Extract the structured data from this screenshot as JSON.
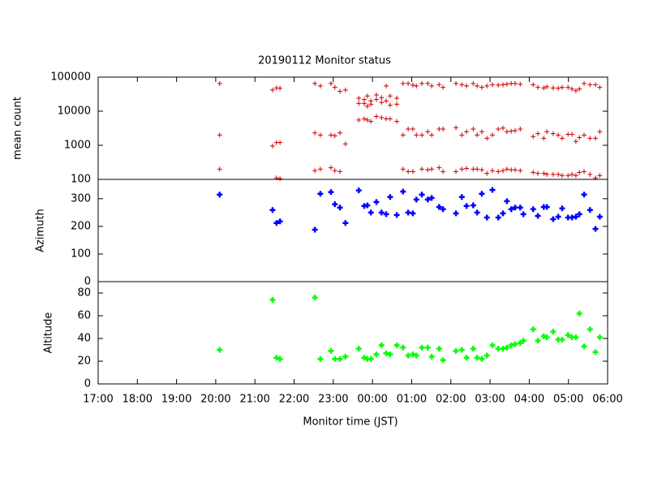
{
  "chart_data": [
    {
      "type": "scatter",
      "title": "20190112 Monitor status",
      "ylabel": "mean count",
      "ylog": true,
      "color": "#cc0000",
      "marker": "plus",
      "xlim": [
        17,
        30
      ],
      "ylim": [
        100,
        100000
      ],
      "yticks": [
        100,
        1000,
        10000,
        100000
      ],
      "series": [
        {
          "color": "#cc0000",
          "x": [
            20.1,
            20.1,
            20.1,
            21.45,
            21.45,
            21.55,
            21.55,
            21.55,
            21.64,
            21.64,
            21.64,
            22.53,
            22.53,
            22.53,
            22.67,
            22.67,
            22.67,
            22.94,
            22.94,
            22.94,
            23.04,
            23.04,
            23.04,
            23.17,
            23.17,
            23.17,
            23.31,
            23.31,
            23.65,
            23.65,
            23.65,
            23.79,
            23.79,
            23.79,
            23.87,
            23.87,
            23.87,
            23.96,
            23.96,
            23.96,
            24.1,
            24.1,
            24.1,
            24.23,
            24.23,
            24.23,
            24.35,
            24.35,
            24.35,
            24.45,
            24.45,
            24.45,
            24.62,
            24.62,
            24.62,
            24.78,
            24.78,
            24.78,
            24.91,
            24.91,
            24.91,
            25.03,
            25.03,
            25.03,
            25.12,
            25.12,
            25.26,
            25.26,
            25.26,
            25.41,
            25.41,
            25.41,
            25.51,
            25.51,
            25.51,
            25.7,
            25.7,
            25.7,
            25.8,
            25.8,
            25.8,
            26.13,
            26.13,
            26.13,
            26.28,
            26.28,
            26.28,
            26.4,
            26.4,
            26.4,
            26.57,
            26.57,
            26.57,
            26.67,
            26.67,
            26.67,
            26.79,
            26.79,
            26.79,
            26.92,
            26.92,
            26.92,
            27.06,
            27.06,
            27.06,
            27.21,
            27.21,
            27.21,
            27.33,
            27.33,
            27.33,
            27.43,
            27.43,
            27.43,
            27.54,
            27.54,
            27.54,
            27.64,
            27.64,
            27.64,
            27.77,
            27.77,
            27.77,
            28.1,
            28.1,
            28.1,
            28.22,
            28.22,
            28.22,
            28.37,
            28.37,
            28.37,
            28.45,
            28.45,
            28.45,
            28.61,
            28.61,
            28.61,
            28.74,
            28.74,
            28.74,
            28.84,
            28.84,
            28.84,
            28.99,
            28.99,
            28.99,
            29.09,
            29.09,
            29.09,
            29.19,
            29.19,
            29.19,
            29.28,
            29.28,
            29.28,
            29.4,
            29.4,
            29.4,
            29.55,
            29.55,
            29.55,
            29.69,
            29.69,
            29.69,
            29.8,
            29.8,
            29.8
          ],
          "values": [
            65000,
            2000,
            200,
            42000,
            950,
            48000,
            1200,
            110,
            47000,
            1200,
            105,
            65000,
            2300,
            180,
            55000,
            2000,
            200,
            65000,
            2000,
            220,
            50000,
            1900,
            180,
            38000,
            2300,
            170,
            42000,
            1100,
            24000,
            17000,
            5500,
            22000,
            17000,
            6000,
            28000,
            14000,
            5500,
            20000,
            16000,
            5000,
            30000,
            22000,
            7000,
            25000,
            18000,
            6500,
            55000,
            20000,
            6000,
            28000,
            15000,
            6000,
            24000,
            16000,
            5000,
            65000,
            2000,
            200,
            65000,
            3000,
            170,
            58000,
            3000,
            170,
            55000,
            2000,
            65000,
            2000,
            200,
            65000,
            2500,
            190,
            55000,
            2000,
            200,
            60000,
            3000,
            220,
            50000,
            3000,
            170,
            65000,
            3300,
            170,
            60000,
            2000,
            200,
            55000,
            2500,
            210,
            65000,
            3000,
            200,
            55000,
            2000,
            200,
            50000,
            2500,
            190,
            55000,
            1600,
            150,
            60000,
            2000,
            180,
            58000,
            3000,
            170,
            60000,
            3200,
            180,
            62000,
            2500,
            200,
            65000,
            2600,
            190,
            65000,
            2700,
            190,
            62000,
            3000,
            180,
            60000,
            1800,
            160,
            50000,
            2200,
            150,
            48000,
            1600,
            150,
            52000,
            2500,
            140,
            48000,
            2200,
            140,
            47000,
            2000,
            140,
            50000,
            1600,
            130,
            50000,
            2100,
            130,
            45000,
            2100,
            140,
            40000,
            1300,
            130,
            45000,
            1700,
            160,
            65000,
            2000,
            170,
            60000,
            1600,
            140,
            60000,
            1600,
            110,
            50000,
            2500,
            130
          ]
        }
      ]
    },
    {
      "type": "scatter",
      "ylabel": "Azimuth",
      "marker": "bold-plus",
      "xlim": [
        17,
        30
      ],
      "ylim": [
        0,
        370
      ],
      "yticks": [
        0,
        100,
        200,
        300
      ],
      "series": [
        {
          "color": "#0000ff",
          "x": [
            20.1,
            21.45,
            21.55,
            21.64,
            22.53,
            22.67,
            22.94,
            23.04,
            23.17,
            23.31,
            23.65,
            23.79,
            23.87,
            23.96,
            24.1,
            24.23,
            24.35,
            24.45,
            24.62,
            24.78,
            24.91,
            25.03,
            25.12,
            25.26,
            25.41,
            25.51,
            25.7,
            25.8,
            26.13,
            26.28,
            26.4,
            26.57,
            26.67,
            26.79,
            26.92,
            27.06,
            27.21,
            27.33,
            27.43,
            27.54,
            27.64,
            27.77,
            27.85,
            28.1,
            28.22,
            28.37,
            28.45,
            28.61,
            28.74,
            28.84,
            28.99,
            29.09,
            29.19,
            29.28,
            29.4,
            29.55,
            29.69,
            29.8
          ],
          "values": [
            315,
            259,
            212,
            218,
            188,
            318,
            324,
            280,
            268,
            212,
            330,
            274,
            276,
            250,
            288,
            250,
            244,
            306,
            241,
            326,
            250,
            247,
            297,
            315,
            297,
            303,
            270,
            262,
            247,
            306,
            274,
            276,
            250,
            318,
            232,
            332,
            232,
            247,
            291,
            262,
            268,
            268,
            244,
            262,
            238,
            270,
            270,
            226,
            235,
            265,
            232,
            232,
            235,
            244,
            315,
            259,
            191,
            235
          ]
        }
      ]
    },
    {
      "type": "scatter",
      "ylabel": "Altitude",
      "xlabel": "Monitor time (JST)",
      "marker": "bold-plus",
      "xlim": [
        17,
        30
      ],
      "ylim": [
        0,
        90
      ],
      "yticks": [
        0,
        20,
        40,
        60,
        80
      ],
      "xticks": [
        {
          "value": 17,
          "label": "17:00"
        },
        {
          "value": 18,
          "label": "18:00"
        },
        {
          "value": 19,
          "label": "19:00"
        },
        {
          "value": 20,
          "label": "20:00"
        },
        {
          "value": 21,
          "label": "21:00"
        },
        {
          "value": 22,
          "label": "22:00"
        },
        {
          "value": 23,
          "label": "23:00"
        },
        {
          "value": 24,
          "label": "00:00"
        },
        {
          "value": 25,
          "label": "01:00"
        },
        {
          "value": 26,
          "label": "02:00"
        },
        {
          "value": 27,
          "label": "03:00"
        },
        {
          "value": 28,
          "label": "04:00"
        },
        {
          "value": 29,
          "label": "05:00"
        },
        {
          "value": 30,
          "label": "06:00"
        }
      ],
      "series": [
        {
          "color": "#00ff00",
          "x": [
            20.1,
            21.45,
            21.55,
            21.64,
            22.53,
            22.67,
            22.94,
            23.04,
            23.17,
            23.31,
            23.65,
            23.79,
            23.87,
            23.96,
            24.1,
            24.23,
            24.35,
            24.45,
            24.62,
            24.78,
            24.91,
            25.03,
            25.12,
            25.26,
            25.41,
            25.51,
            25.7,
            25.8,
            26.13,
            26.28,
            26.4,
            26.57,
            26.67,
            26.79,
            26.92,
            27.06,
            27.21,
            27.33,
            27.43,
            27.54,
            27.64,
            27.77,
            27.85,
            28.1,
            28.22,
            28.37,
            28.45,
            28.61,
            28.74,
            28.84,
            28.99,
            29.09,
            29.19,
            29.28,
            29.4,
            29.55,
            29.69,
            29.8
          ],
          "values": [
            30,
            74,
            23,
            22,
            76,
            22,
            29,
            22,
            22,
            24,
            31,
            23,
            22,
            22,
            26,
            34,
            27,
            26,
            34,
            32,
            25,
            26,
            25,
            32,
            32,
            24,
            31,
            21,
            29,
            30,
            23,
            31,
            23,
            22,
            25,
            34,
            31,
            31,
            32,
            34,
            35,
            36,
            38,
            48,
            38,
            42,
            41,
            46,
            39,
            39,
            43,
            41,
            41,
            62,
            33,
            48,
            28,
            41
          ]
        }
      ]
    }
  ]
}
